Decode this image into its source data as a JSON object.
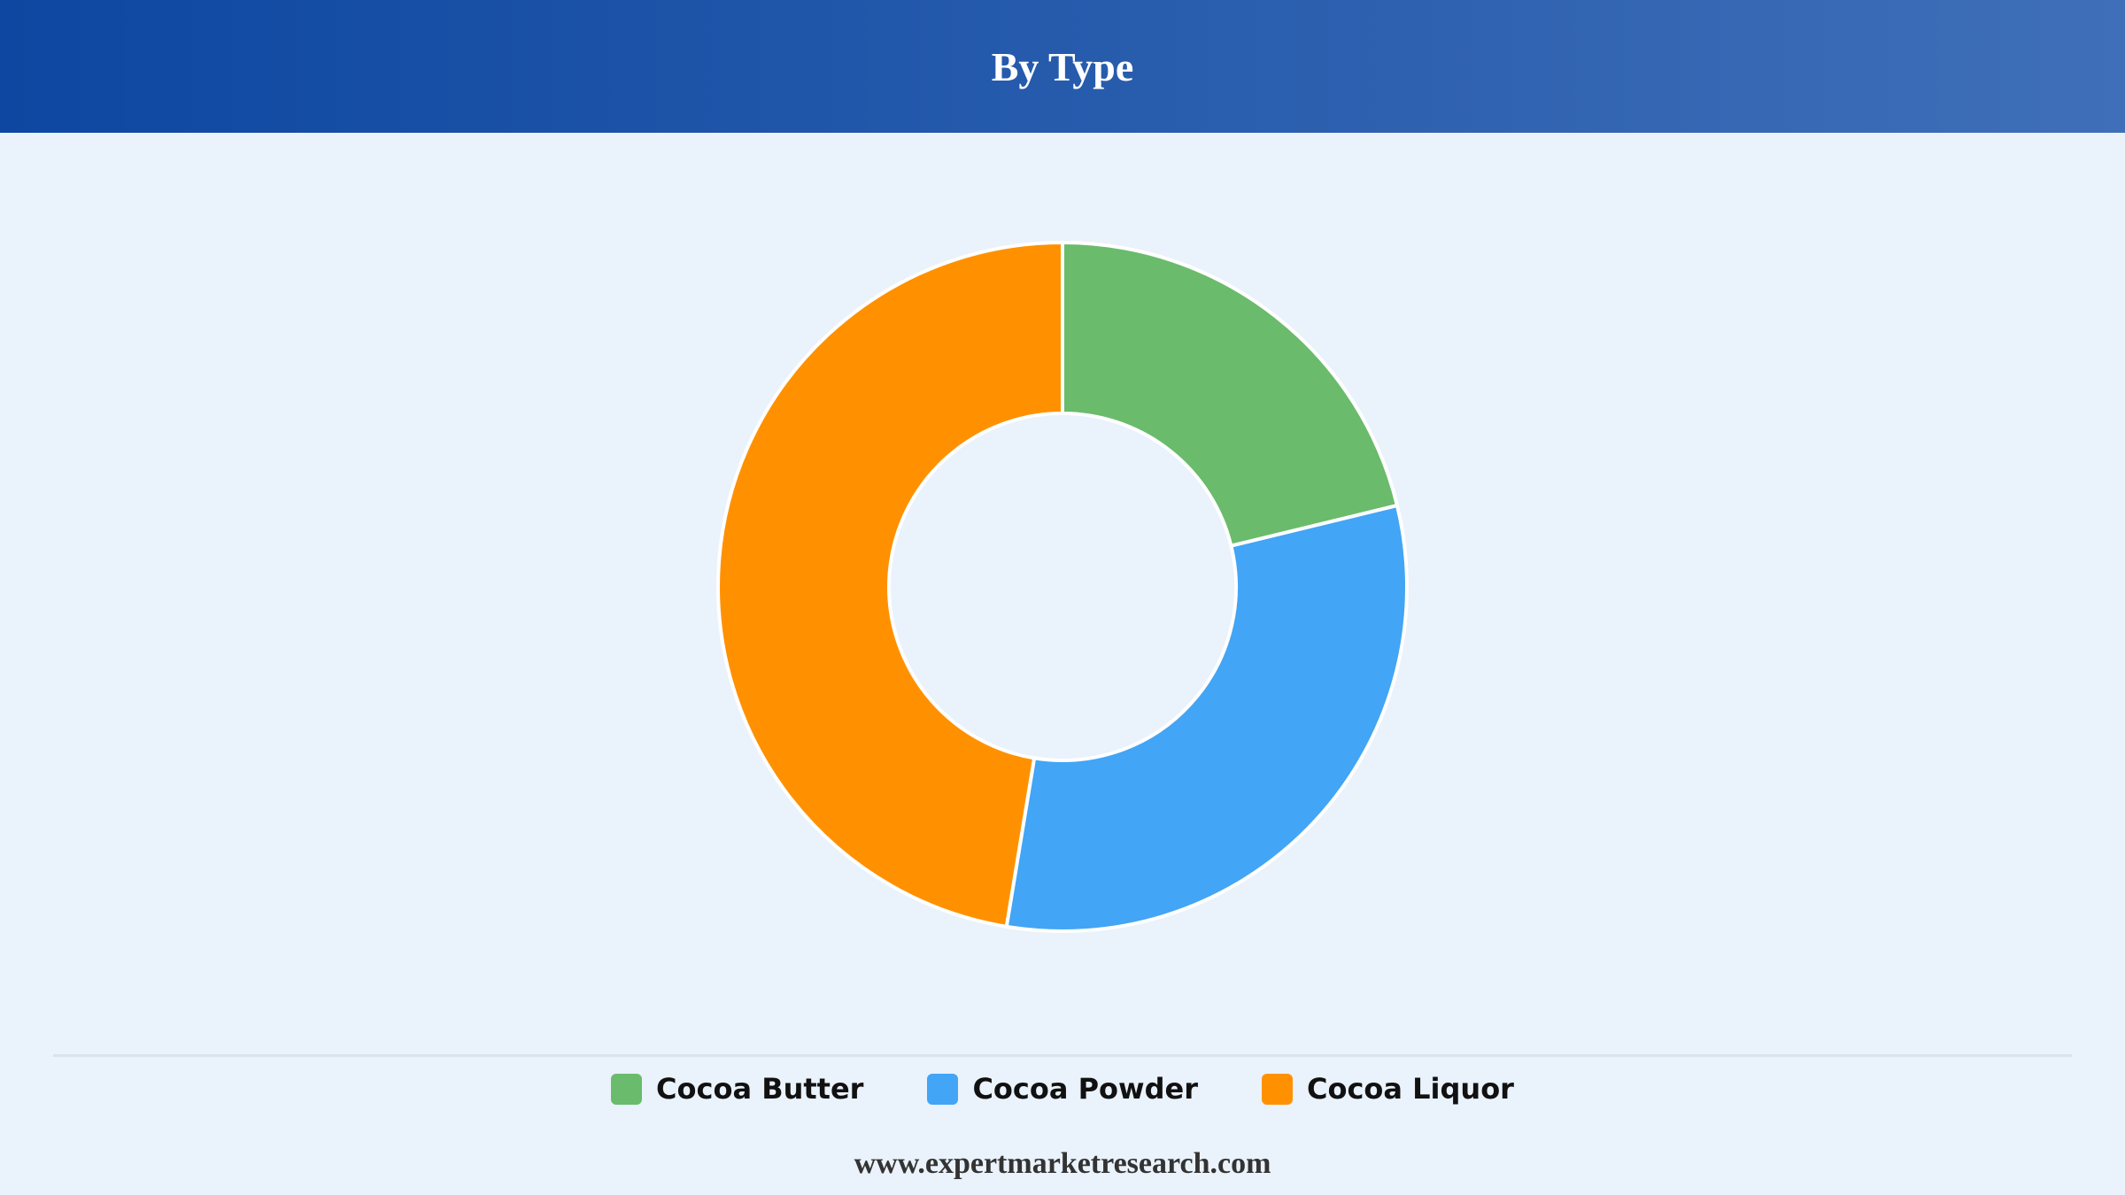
{
  "chart_data": {
    "type": "donut",
    "title": "By Type",
    "categories": [
      "Cocoa Butter",
      "Cocoa Powder",
      "Cocoa Liquor"
    ],
    "values": [
      21.2,
      31.4,
      47.4
    ],
    "colors": [
      "#6abb6c",
      "#42a5f5",
      "#ff9100"
    ],
    "legend": "bottom",
    "source": "www.expertmarketresearch.com"
  }
}
